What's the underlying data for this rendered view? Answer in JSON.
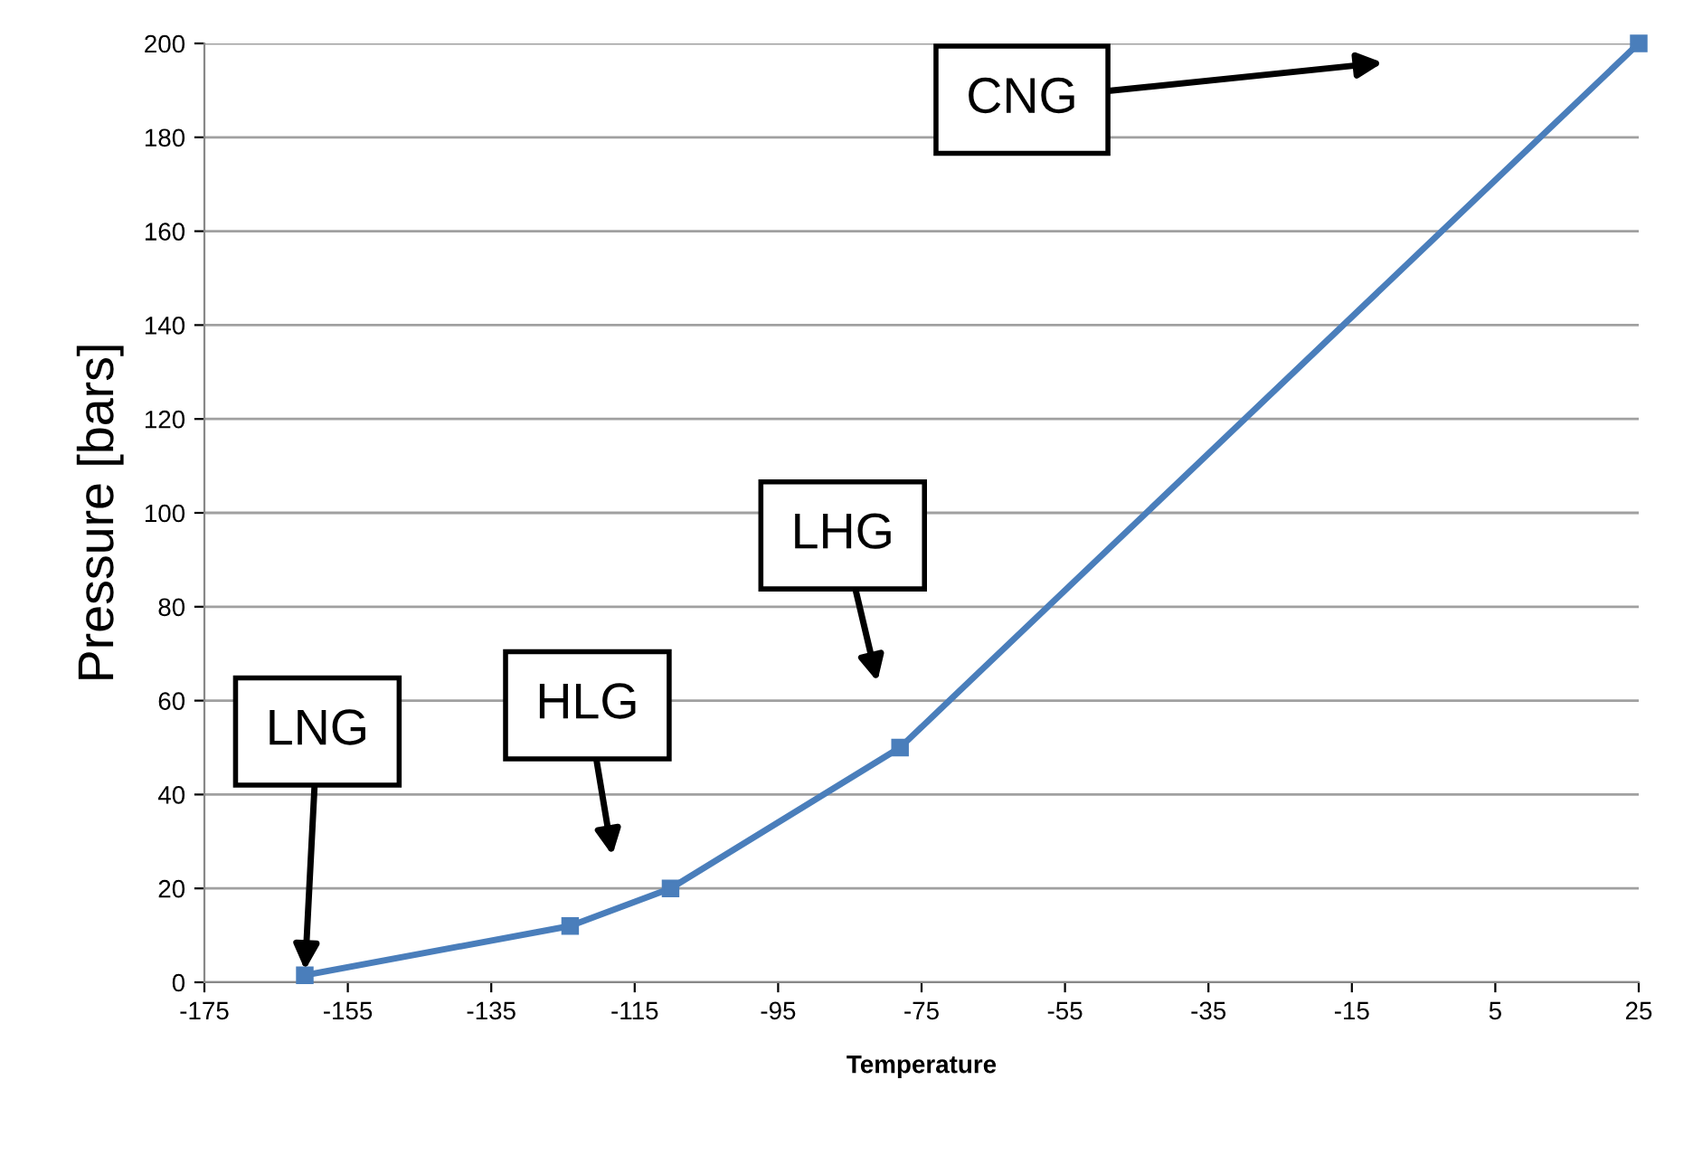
{
  "chart_data": {
    "type": "line",
    "xlabel": "Temperature",
    "ylabel": "Pressure [bars]",
    "x": [
      -161,
      -124,
      -110,
      -78,
      25
    ],
    "series": [
      {
        "color": "#4a7ebb",
        "values": [
          1.5,
          12,
          20,
          50,
          200
        ]
      }
    ],
    "xlim": [
      -175,
      25
    ],
    "xticks": [
      -175,
      -155,
      -135,
      -115,
      -95,
      -75,
      -55,
      -35,
      -15,
      5,
      25
    ],
    "ylim": [
      0,
      200
    ],
    "yticks": [
      0,
      20,
      40,
      60,
      80,
      100,
      120,
      140,
      160,
      180,
      200
    ],
    "grid": "y",
    "marker": "square",
    "line_style": "solid",
    "legend": false,
    "annotations": [
      {
        "text": "LNG",
        "x": -161,
        "y": 1.5
      },
      "HLG",
      "LHG",
      "CNG"
    ]
  }
}
